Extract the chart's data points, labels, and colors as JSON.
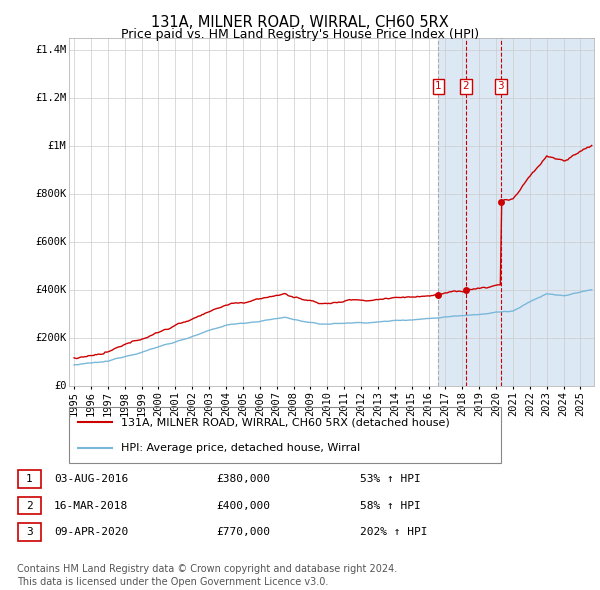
{
  "title": "131A, MILNER ROAD, WIRRAL, CH60 5RX",
  "subtitle": "Price paid vs. HM Land Registry's House Price Index (HPI)",
  "xlim": [
    1994.7,
    2025.8
  ],
  "ylim": [
    0,
    1450000
  ],
  "yticks": [
    0,
    200000,
    400000,
    600000,
    800000,
    1000000,
    1200000,
    1400000
  ],
  "ytick_labels": [
    "£0",
    "£200K",
    "£400K",
    "£600K",
    "£800K",
    "£1M",
    "£1.2M",
    "£1.4M"
  ],
  "sale_dates": [
    2016.586,
    2018.204,
    2020.274
  ],
  "sale_prices": [
    380000,
    400000,
    770000
  ],
  "sale_labels": [
    "1",
    "2",
    "3"
  ],
  "legend_entries": [
    "131A, MILNER ROAD, WIRRAL, CH60 5RX (detached house)",
    "HPI: Average price, detached house, Wirral"
  ],
  "table_rows": [
    {
      "label": "1",
      "date": "03-AUG-2016",
      "price": "£380,000",
      "change": "53% ↑ HPI"
    },
    {
      "label": "2",
      "date": "16-MAR-2018",
      "price": "£400,000",
      "change": "58% ↑ HPI"
    },
    {
      "label": "3",
      "date": "09-APR-2020",
      "price": "£770,000",
      "change": "202% ↑ HPI"
    }
  ],
  "footer": "Contains HM Land Registry data © Crown copyright and database right 2024.\nThis data is licensed under the Open Government Licence v3.0.",
  "hpi_color": "#7ab8d9",
  "price_color": "#cc0000",
  "bg_shaded_color": "#dce9f5",
  "vline_gray": "#aaaaaa",
  "vline_red": "#cc0000",
  "grid_color": "#cccccc",
  "title_fontsize": 10.5,
  "subtitle_fontsize": 9,
  "tick_fontsize": 7.5,
  "legend_fontsize": 8,
  "table_fontsize": 8,
  "footer_fontsize": 7
}
